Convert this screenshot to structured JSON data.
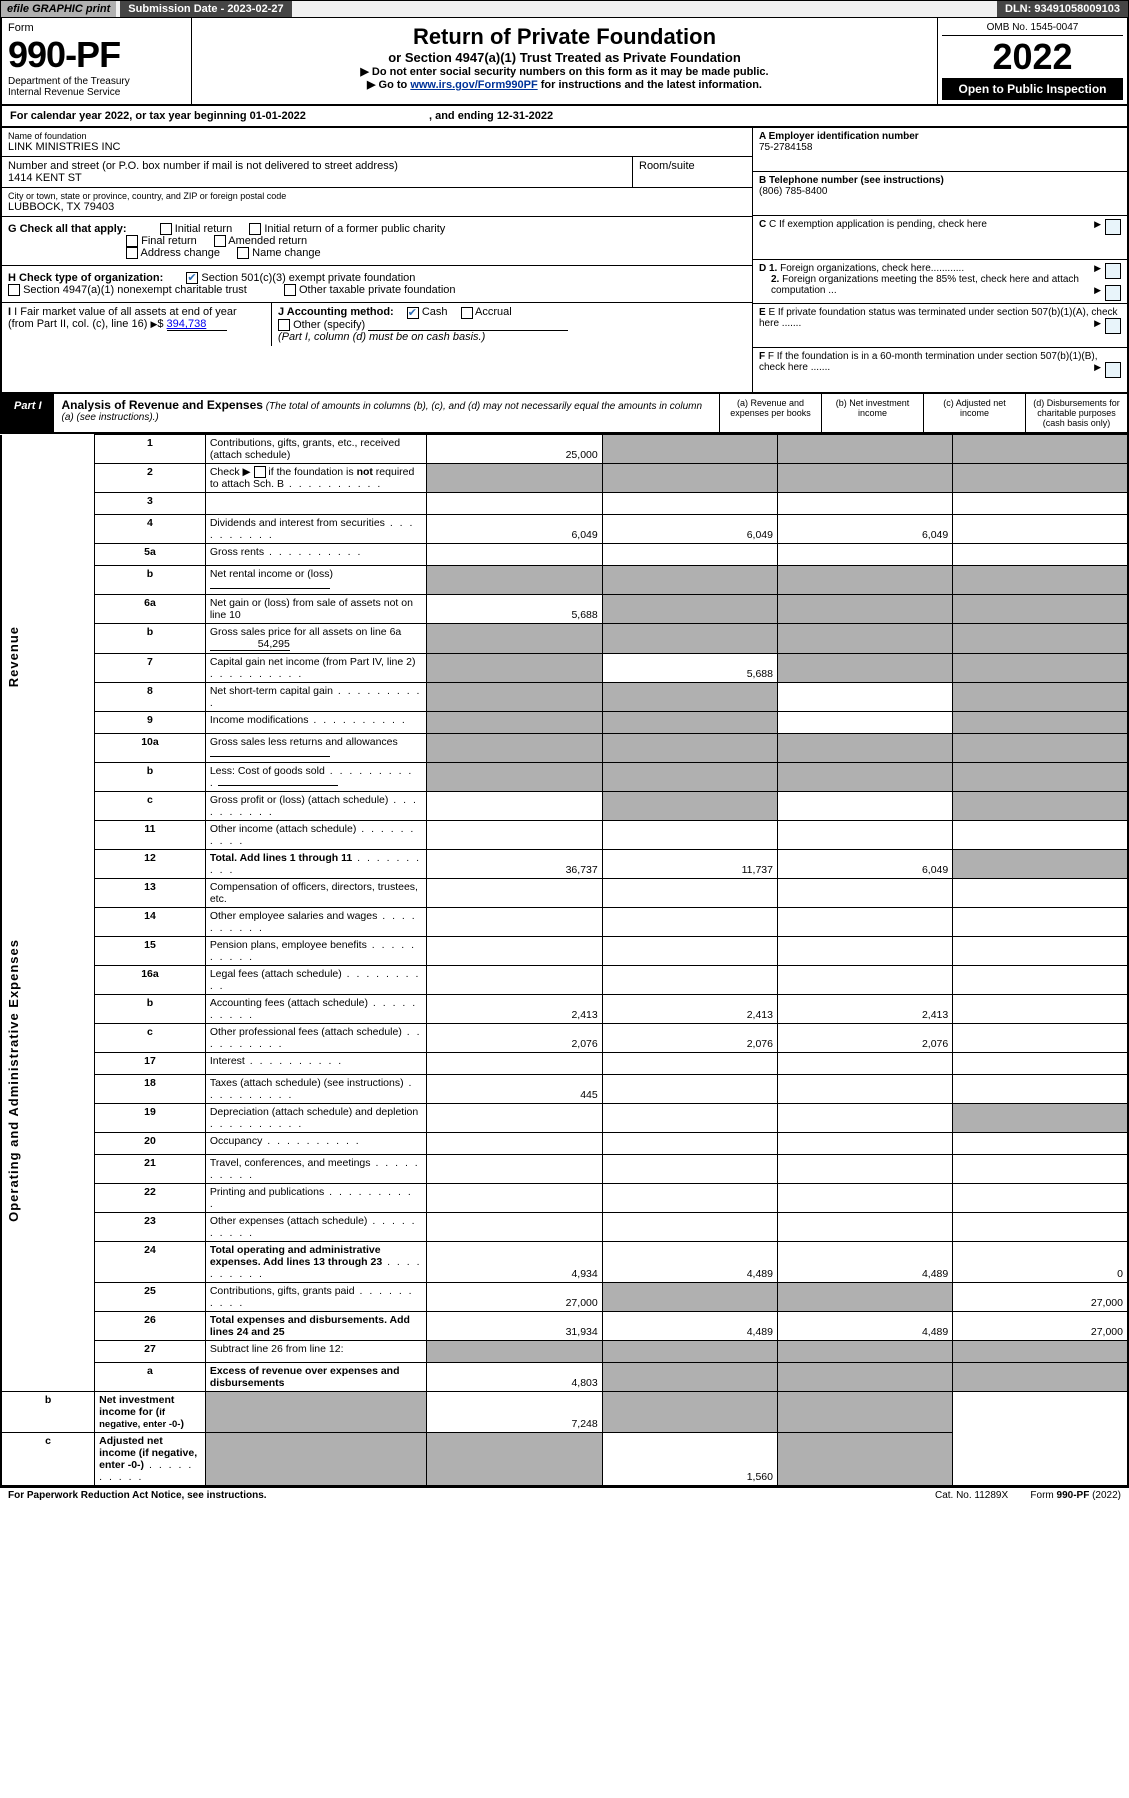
{
  "topbar": {
    "efile": "efile GRAPHIC print",
    "subdate_lbl": "Submission Date - 2023-02-27",
    "dln": "DLN: 93491058009103"
  },
  "header": {
    "form_word": "Form",
    "form_no": "990-PF",
    "dept": "Department of the Treasury",
    "irs": "Internal Revenue Service",
    "title": "Return of Private Foundation",
    "subtitle": "or Section 4947(a)(1) Trust Treated as Private Foundation",
    "note1": "▶ Do not enter social security numbers on this form as it may be made public.",
    "note2_pre": "▶ Go to ",
    "note2_link": "www.irs.gov/Form990PF",
    "note2_post": " for instructions and the latest information.",
    "omb": "OMB No. 1545-0047",
    "year": "2022",
    "open": "Open to Public Inspection"
  },
  "cal": {
    "text": "For calendar year 2022, or tax year beginning 01-01-2022",
    "end": ", and ending 12-31-2022"
  },
  "entity": {
    "name_lbl": "Name of foundation",
    "name": "LINK MINISTRIES INC",
    "addr_lbl": "Number and street (or P.O. box number if mail is not delivered to street address)",
    "addr": "1414 KENT ST",
    "room_lbl": "Room/suite",
    "city_lbl": "City or town, state or province, country, and ZIP or foreign postal code",
    "city": "LUBBOCK, TX  79403",
    "a_lbl": "A Employer identification number",
    "a_val": "75-2784158",
    "b_lbl": "B Telephone number (see instructions)",
    "b_val": "(806) 785-8400",
    "c_lbl": "C If exemption application is pending, check here",
    "d1_lbl": "D 1. Foreign organizations, check here............",
    "d2_lbl": "2. Foreign organizations meeting the 85% test, check here and attach computation ...",
    "e_lbl": "E  If private foundation status was terminated under section 507(b)(1)(A), check here .......",
    "f_lbl": "F  If the foundation is in a 60-month termination under section 507(b)(1)(B), check here .......",
    "g_lbl": "G Check all that apply:",
    "g_opts": [
      "Initial return",
      "Initial return of a former public charity",
      "Final return",
      "Amended return",
      "Address change",
      "Name change"
    ],
    "h_lbl": "H Check type of organization:",
    "h1": "Section 501(c)(3) exempt private foundation",
    "h2": "Section 4947(a)(1) nonexempt charitable trust",
    "h3": "Other taxable private foundation",
    "i_lbl": "I Fair market value of all assets at end of year (from Part II, col. (c), line 16)",
    "i_val": "394,738",
    "j_lbl": "J Accounting method:",
    "j_cash": "Cash",
    "j_acc": "Accrual",
    "j_other": "Other (specify)",
    "j_note": "(Part I, column (d) must be on cash basis.)"
  },
  "part1": {
    "lbl": "Part I",
    "title": "Analysis of Revenue and Expenses",
    "title_note": "(The total of amounts in columns (b), (c), and (d) may not necessarily equal the amounts in column (a) (see instructions).)",
    "cols": {
      "a": "(a)  Revenue and expenses per books",
      "b": "(b)  Net investment income",
      "c": "(c)  Adjusted net income",
      "d": "(d)  Disbursements for charitable purposes (cash basis only)"
    }
  },
  "sides": {
    "rev": "Revenue",
    "exp": "Operating and Administrative Expenses"
  },
  "rows": [
    {
      "n": "1",
      "d": "Contributions, gifts, grants, etc., received (attach schedule)",
      "a": "25,000",
      "b": "",
      "c": "",
      "dsh": [
        "b",
        "c",
        "d"
      ]
    },
    {
      "n": "2",
      "d": "Check ▶ ☐ if the foundation is not required to attach Sch. B",
      "dots": true,
      "a": "",
      "sh_all": true
    },
    {
      "n": "3",
      "d": "",
      "a": "",
      "b": "",
      "c": ""
    },
    {
      "n": "4",
      "d": "Dividends and interest from securities",
      "dots": true,
      "a": "6,049",
      "b": "6,049",
      "c": "6,049"
    },
    {
      "n": "5a",
      "d": "Gross rents",
      "dots": true
    },
    {
      "n": "b",
      "d": "Net rental income or (loss)",
      "und": true,
      "sh_all": true
    },
    {
      "n": "6a",
      "d": "Net gain or (loss) from sale of assets not on line 10",
      "a": "5,688",
      "dsh": [
        "b",
        "c",
        "d"
      ]
    },
    {
      "n": "b",
      "d": "Gross sales price for all assets on line 6a",
      "undv": "54,295",
      "sh_all": true
    },
    {
      "n": "7",
      "d": "Capital gain net income (from Part IV, line 2)",
      "dots": true,
      "b": "5,688",
      "dsh": [
        "a",
        "c",
        "d"
      ],
      "ash": true
    },
    {
      "n": "8",
      "d": "Net short-term capital gain",
      "dots": true,
      "dsh": [
        "a",
        "b",
        "d"
      ],
      "ash": true,
      "bsh": true
    },
    {
      "n": "9",
      "d": "Income modifications",
      "dots": true,
      "dsh": [
        "a",
        "b",
        "d"
      ],
      "ash": true,
      "bsh": true
    },
    {
      "n": "10a",
      "d": "Gross sales less returns and allowances",
      "und": true,
      "sh_all": true
    },
    {
      "n": "b",
      "d": "Less: Cost of goods sold",
      "dots": true,
      "und": true,
      "sh_all": true
    },
    {
      "n": "c",
      "d": "Gross profit or (loss) (attach schedule)",
      "dots": true,
      "dsh": [
        "b",
        "d"
      ],
      "bsh": true
    },
    {
      "n": "11",
      "d": "Other income (attach schedule)",
      "dots": true
    },
    {
      "n": "12",
      "d": "Total. Add lines 1 through 11",
      "dots": true,
      "bold": true,
      "a": "36,737",
      "b": "11,737",
      "c": "6,049",
      "dsh": [
        "d"
      ]
    },
    {
      "n": "13",
      "d": "Compensation of officers, directors, trustees, etc."
    },
    {
      "n": "14",
      "d": "Other employee salaries and wages",
      "dots": true
    },
    {
      "n": "15",
      "d": "Pension plans, employee benefits",
      "dots": true
    },
    {
      "n": "16a",
      "d": "Legal fees (attach schedule)",
      "dots": true
    },
    {
      "n": "b",
      "d": "Accounting fees (attach schedule)",
      "dots": true,
      "a": "2,413",
      "b": "2,413",
      "c": "2,413"
    },
    {
      "n": "c",
      "d": "Other professional fees (attach schedule)",
      "dots": true,
      "a": "2,076",
      "b": "2,076",
      "c": "2,076"
    },
    {
      "n": "17",
      "d": "Interest",
      "dots": true
    },
    {
      "n": "18",
      "d": "Taxes (attach schedule) (see instructions)",
      "dots": true,
      "a": "445"
    },
    {
      "n": "19",
      "d": "Depreciation (attach schedule) and depletion",
      "dots": true,
      "dsh": [
        "d"
      ]
    },
    {
      "n": "20",
      "d": "Occupancy",
      "dots": true
    },
    {
      "n": "21",
      "d": "Travel, conferences, and meetings",
      "dots": true
    },
    {
      "n": "22",
      "d": "Printing and publications",
      "dots": true
    },
    {
      "n": "23",
      "d": "Other expenses (attach schedule)",
      "dots": true
    },
    {
      "n": "24",
      "d": "Total operating and administrative expenses. Add lines 13 through 23",
      "dots": true,
      "bold": true,
      "a": "4,934",
      "b": "4,489",
      "c": "4,489",
      "dv": "0"
    },
    {
      "n": "25",
      "d": "Contributions, gifts, grants paid",
      "dots": true,
      "a": "27,000",
      "dv": "27,000",
      "dsh": [
        "b",
        "c"
      ],
      "bsh": true,
      "csh": true
    },
    {
      "n": "26",
      "d": "Total expenses and disbursements. Add lines 24 and 25",
      "bold": true,
      "a": "31,934",
      "b": "4,489",
      "c": "4,489",
      "dv": "27,000"
    },
    {
      "n": "27",
      "d": "Subtract line 26 from line 12:",
      "sh_all": true,
      "noside": true
    },
    {
      "n": "a",
      "d": "Excess of revenue over expenses and disbursements",
      "bold": true,
      "a": "4,803",
      "dsh": [
        "b",
        "c",
        "d"
      ],
      "bsh": true,
      "csh": true
    },
    {
      "n": "b",
      "d": "Net investment income for (<span class='smalltxt'>if negative, enter -0-</span>)",
      "bold": true,
      "b": "7,248",
      "dsh": [
        "a",
        "c",
        "d"
      ],
      "ash": true,
      "csh": true
    },
    {
      "n": "c",
      "d": "Adjusted net income (if negative, enter -0-)",
      "dots": true,
      "bold": true,
      "c": "1,560",
      "dsh": [
        "a",
        "b",
        "d"
      ],
      "ash": true,
      "bsh": true
    }
  ],
  "rows_fix": {
    "27b": "Net investment income (if negative, enter -0-)",
    "2d": "Check ▶"
  },
  "footer": {
    "left": "For Paperwork Reduction Act Notice, see instructions.",
    "mid": "Cat. No. 11289X",
    "right": "Form 990-PF (2022)"
  }
}
